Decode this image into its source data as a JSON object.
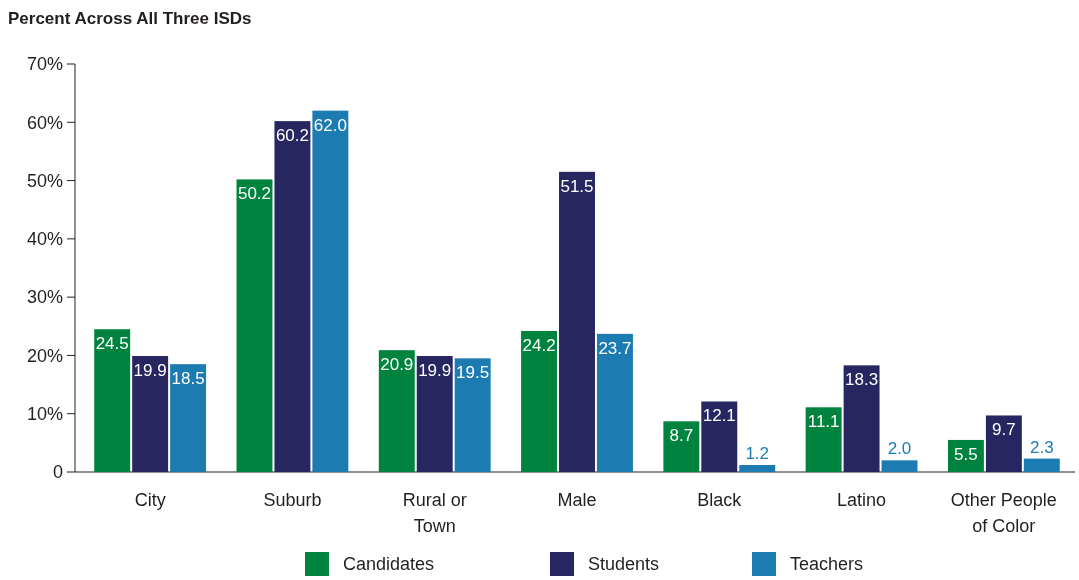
{
  "chart_data": {
    "type": "bar",
    "title": "Percent Across All Three ISDs",
    "categories": [
      "City",
      "Suburb",
      "Rural or Town",
      "Male",
      "Black",
      "Latino",
      "Other People of Color"
    ],
    "series": [
      {
        "name": "Candidates",
        "color": "#00833e",
        "values": [
          24.5,
          50.2,
          20.9,
          24.2,
          8.7,
          11.1,
          5.5
        ],
        "value_labels": [
          "24.5",
          "50.2",
          "20.9",
          "24.2",
          "8.7",
          "11.1",
          "5.5"
        ]
      },
      {
        "name": "Students",
        "color": "#272660",
        "values": [
          19.9,
          60.2,
          19.9,
          51.5,
          12.1,
          18.3,
          9.7
        ],
        "value_labels": [
          "19.9",
          "60.2",
          "19.9",
          "51.5",
          "12.1",
          "18.3",
          "9.7"
        ]
      },
      {
        "name": "Teachers",
        "color": "#1c7bb0",
        "values": [
          18.5,
          62.0,
          19.5,
          23.7,
          1.2,
          2.0,
          2.3
        ],
        "value_labels": [
          "18.5",
          "62.0",
          "19.5",
          "23.7",
          "1.2",
          "2.0",
          "2.3"
        ]
      }
    ],
    "ylim": [
      0,
      70
    ],
    "yticks": [
      0,
      {
        "value": 10,
        "label": "10%"
      },
      {
        "value": 20,
        "label": "20%"
      },
      {
        "value": 30,
        "label": "30%"
      },
      {
        "value": 40,
        "label": "40%"
      },
      {
        "value": 50,
        "label": "50%"
      },
      {
        "value": 60,
        "label": "60%"
      },
      {
        "value": 70,
        "label": "70%"
      }
    ],
    "legend": "bottom",
    "grid": false
  }
}
